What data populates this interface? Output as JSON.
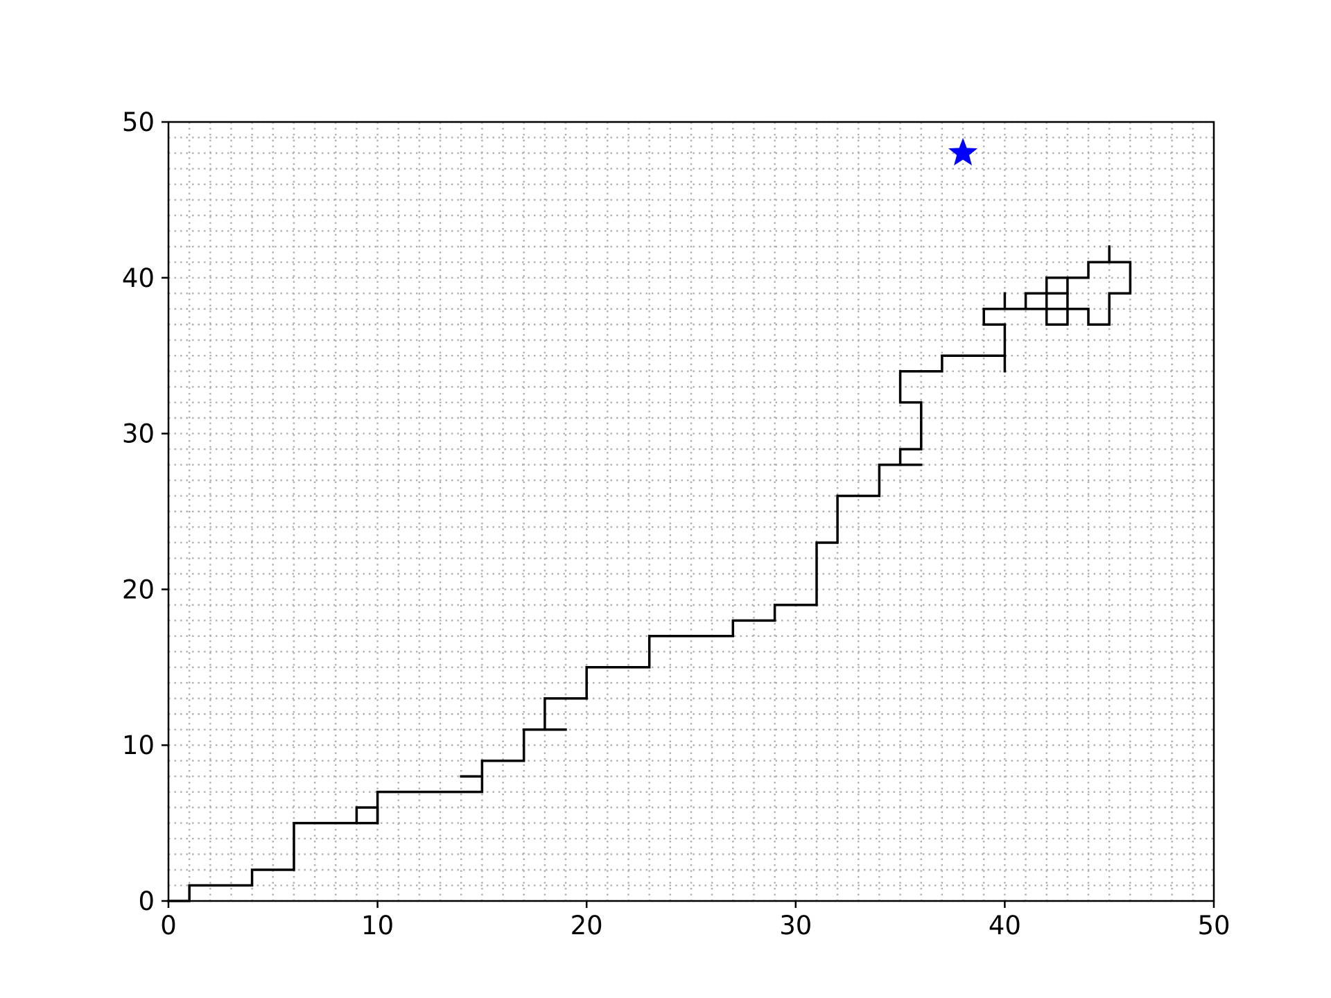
{
  "chart_data": {
    "type": "line",
    "title": "",
    "xlabel": "",
    "ylabel": "",
    "xlim": [
      0,
      50
    ],
    "ylim": [
      0,
      50
    ],
    "x_ticks": [
      0,
      10,
      20,
      30,
      40,
      50
    ],
    "y_ticks": [
      0,
      10,
      20,
      30,
      40,
      50
    ],
    "x_tick_labels": [
      "0",
      "10",
      "20",
      "30",
      "40",
      "50"
    ],
    "y_tick_labels": [
      "0",
      "10",
      "20",
      "30",
      "40",
      "50"
    ],
    "grid": true,
    "grid_step": 1,
    "grid_style": "dotted",
    "colors": {
      "path": "#000000",
      "marker": "#0000ff",
      "grid": "#b0b0b0"
    },
    "path_segments": [
      [
        [
          0,
          0
        ],
        [
          1,
          0
        ],
        [
          1,
          1
        ],
        [
          4,
          1
        ],
        [
          4,
          2
        ],
        [
          6,
          2
        ],
        [
          6,
          5
        ],
        [
          9,
          5
        ],
        [
          9,
          6
        ],
        [
          10,
          6
        ],
        [
          10,
          5
        ],
        [
          9,
          5
        ]
      ],
      [
        [
          10,
          5
        ],
        [
          10,
          7
        ],
        [
          15,
          7
        ],
        [
          15,
          9
        ],
        [
          17,
          9
        ],
        [
          17,
          11
        ],
        [
          18,
          11
        ],
        [
          18,
          13
        ],
        [
          20,
          13
        ],
        [
          20,
          15
        ],
        [
          23,
          15
        ],
        [
          23,
          17
        ],
        [
          27,
          17
        ],
        [
          27,
          18
        ],
        [
          29,
          18
        ],
        [
          29,
          19
        ],
        [
          31,
          19
        ],
        [
          31,
          23
        ],
        [
          32,
          23
        ],
        [
          32,
          26
        ],
        [
          34,
          26
        ],
        [
          34,
          28
        ],
        [
          35,
          28
        ],
        [
          35,
          29
        ],
        [
          36,
          29
        ],
        [
          36,
          32
        ],
        [
          35,
          32
        ],
        [
          35,
          34
        ],
        [
          37,
          34
        ],
        [
          37,
          35
        ],
        [
          40,
          35
        ],
        [
          40,
          37
        ],
        [
          39,
          37
        ],
        [
          39,
          38
        ],
        [
          44,
          38
        ],
        [
          44,
          37
        ],
        [
          45,
          37
        ],
        [
          45,
          39
        ],
        [
          46,
          39
        ],
        [
          46,
          41
        ],
        [
          44,
          41
        ],
        [
          44,
          40
        ],
        [
          42,
          40
        ],
        [
          42,
          37
        ],
        [
          43,
          37
        ],
        [
          43,
          40
        ]
      ],
      [
        [
          14,
          8
        ],
        [
          15,
          8
        ]
      ],
      [
        [
          17,
          11
        ],
        [
          19,
          11
        ]
      ],
      [
        [
          35,
          28
        ],
        [
          36,
          28
        ]
      ],
      [
        [
          40,
          35
        ],
        [
          40,
          34
        ]
      ],
      [
        [
          40,
          38
        ],
        [
          40,
          39
        ]
      ],
      [
        [
          41,
          38
        ],
        [
          41,
          39
        ],
        [
          43,
          39
        ]
      ],
      [
        [
          45,
          41
        ],
        [
          45,
          42
        ]
      ]
    ],
    "marker": {
      "shape": "star",
      "x": 38,
      "y": 48,
      "color": "#0000ff"
    }
  }
}
